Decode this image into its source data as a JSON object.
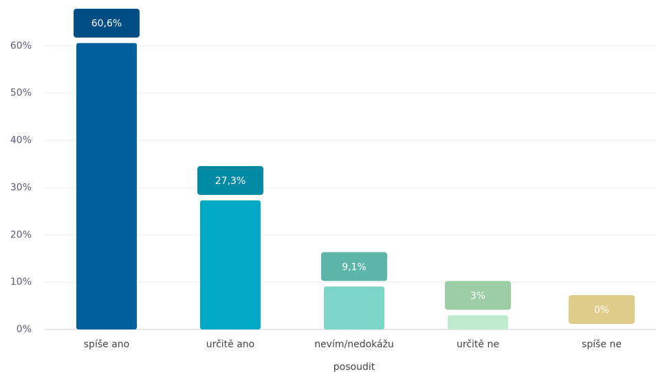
{
  "chart_data": {
    "type": "bar",
    "categories": [
      "spíše ano",
      "určitě ano",
      "nevím/nedokážu posoudit",
      "určitě ne",
      "spíše ne"
    ],
    "values": [
      60.6,
      27.3,
      9.1,
      3,
      0
    ],
    "value_labels": [
      "60,6%",
      "27,3%",
      "9,1%",
      "3%",
      "0%"
    ],
    "colors": [
      "#00609c",
      "#00a9c6",
      "#7bd5c9",
      "#bfeacc",
      "#e8d79a"
    ],
    "label_colors": [
      "#004d85",
      "#008aa3",
      "#5bb5a8",
      "#9ccda5",
      "#dfcc8a"
    ],
    "ylim": [
      0,
      70
    ],
    "yticks": [
      {
        "value": 0,
        "label": "0%"
      },
      {
        "value": 10,
        "label": "10%"
      },
      {
        "value": 20,
        "label": "20%"
      },
      {
        "value": 30,
        "label": "30%"
      },
      {
        "value": 40,
        "label": "40%"
      },
      {
        "value": 50,
        "label": "50%"
      },
      {
        "value": 60,
        "label": "60%"
      }
    ],
    "grid": true
  }
}
